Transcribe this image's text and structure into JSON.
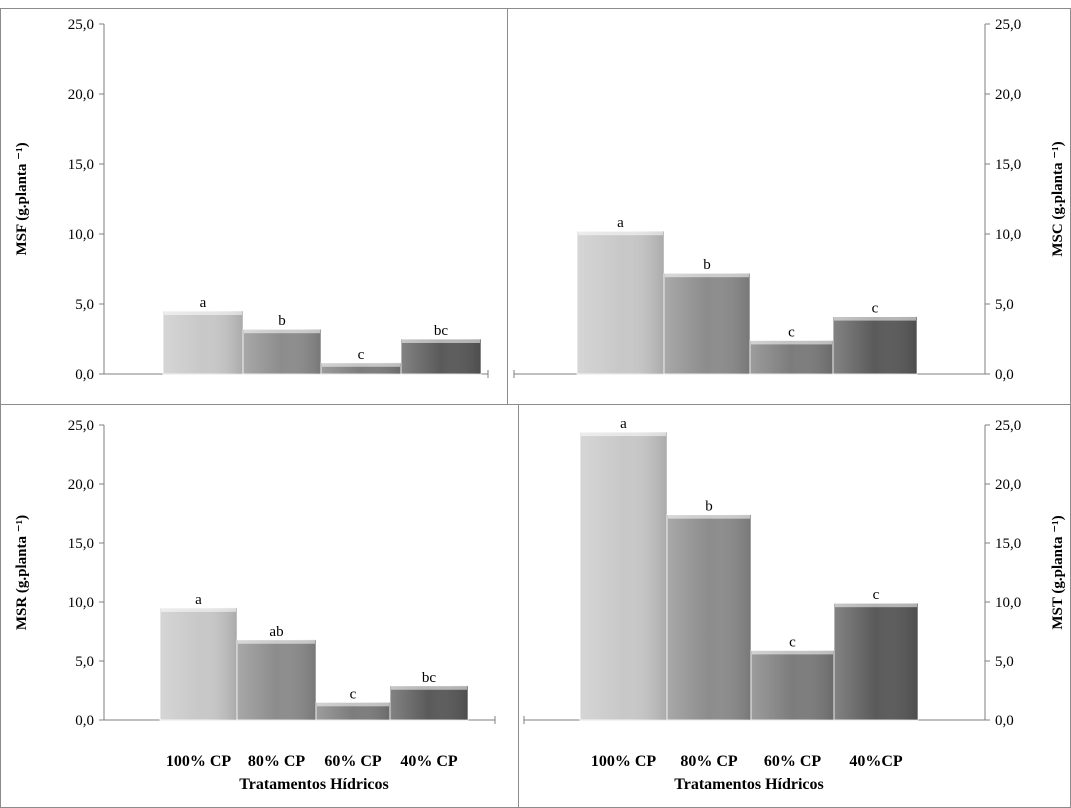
{
  "chart_data": [
    {
      "type": "bar",
      "panel": "top-left",
      "ylabel": "MSF (g.planta ⁻¹)",
      "xlabel": "",
      "ylim": [
        0,
        25
      ],
      "yticks": [
        "0,0",
        "5,0",
        "10,0",
        "15,0",
        "20,0",
        "25,0"
      ],
      "categories": [
        "100% CP",
        "80% CP",
        "60% CP",
        "40% CP"
      ],
      "show_category_labels": false,
      "values": [
        4.5,
        3.2,
        0.8,
        2.5
      ],
      "letters": [
        "a",
        "b",
        "c",
        "bc"
      ],
      "colors": [
        "#c8c8c8",
        "#8c8c8c",
        "#7c7c7c",
        "#5a5a5a"
      ],
      "axis_side": "left"
    },
    {
      "type": "bar",
      "panel": "top-right",
      "ylabel": "MSC (g.planta ⁻¹)",
      "xlabel": "",
      "ylim": [
        0,
        25
      ],
      "yticks": [
        "0,0",
        "5,0",
        "10,0",
        "15,0",
        "20,0",
        "25,0"
      ],
      "categories": [
        "100% CP",
        "80% CP",
        "60% CP",
        "40% CP"
      ],
      "show_category_labels": false,
      "values": [
        10.2,
        7.2,
        2.4,
        4.1
      ],
      "letters": [
        "a",
        "b",
        "c",
        "c"
      ],
      "colors": [
        "#c8c8c8",
        "#8c8c8c",
        "#7c7c7c",
        "#5a5a5a"
      ],
      "axis_side": "right"
    },
    {
      "type": "bar",
      "panel": "bottom-left",
      "ylabel": "MSR (g.planta ⁻¹)",
      "xlabel": "Tratamentos Hídricos",
      "ylim": [
        0,
        25
      ],
      "yticks": [
        "0,0",
        "5,0",
        "10,0",
        "15,0",
        "20,0",
        "25,0"
      ],
      "categories": [
        "100% CP",
        "80% CP",
        "60% CP",
        "40% CP"
      ],
      "show_category_labels": true,
      "values": [
        9.5,
        6.8,
        1.5,
        2.9
      ],
      "letters": [
        "a",
        "ab",
        "c",
        "bc"
      ],
      "colors": [
        "#c8c8c8",
        "#8c8c8c",
        "#7c7c7c",
        "#5a5a5a"
      ],
      "axis_side": "left"
    },
    {
      "type": "bar",
      "panel": "bottom-right",
      "ylabel": "MST (g.planta ⁻¹)",
      "xlabel": "Tratamentos Hídricos",
      "ylim": [
        0,
        25
      ],
      "yticks": [
        "0,0",
        "5,0",
        "10,0",
        "15,0",
        "20,0",
        "25,0"
      ],
      "categories": [
        "100% CP",
        "80% CP",
        "60% CP",
        "40%CP"
      ],
      "show_category_labels": true,
      "values": [
        24.4,
        17.4,
        5.9,
        9.9
      ],
      "letters": [
        "a",
        "b",
        "c",
        "c"
      ],
      "colors": [
        "#c8c8c8",
        "#8c8c8c",
        "#7c7c7c",
        "#5a5a5a"
      ],
      "axis_side": "right"
    }
  ]
}
